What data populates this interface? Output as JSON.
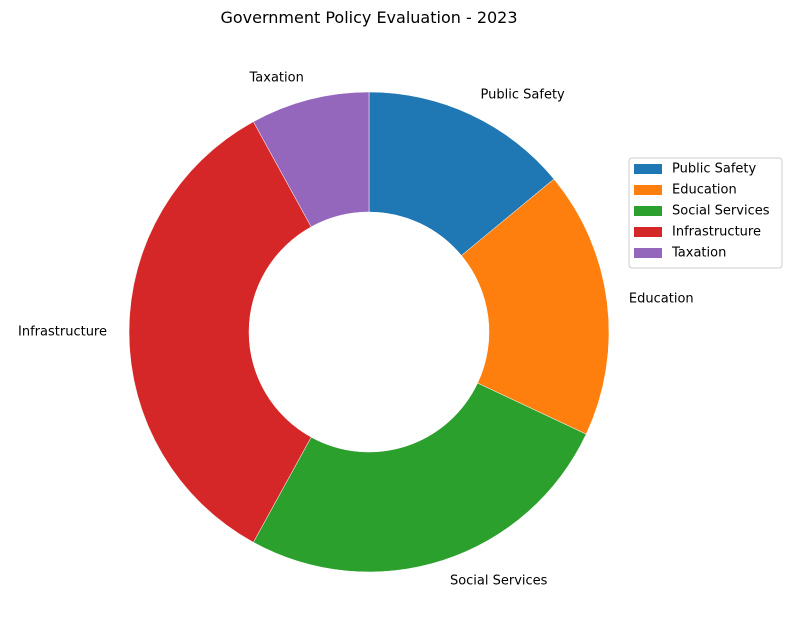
{
  "chart_data": {
    "type": "pie",
    "variant": "donut",
    "title": "Government Policy Evaluation - 2023",
    "categories": [
      "Public Safety",
      "Education",
      "Social Services",
      "Infrastructure",
      "Taxation"
    ],
    "values": [
      14,
      18,
      26,
      34,
      8
    ],
    "colors": [
      "#1f77b4",
      "#ff7f0e",
      "#2ca02c",
      "#d62728",
      "#9467bd"
    ],
    "start_angle": "12 o'clock",
    "direction": "clockwise",
    "legend": {
      "position": "right",
      "entries": [
        "Public Safety",
        "Education",
        "Social Services",
        "Infrastructure",
        "Taxation"
      ]
    }
  }
}
